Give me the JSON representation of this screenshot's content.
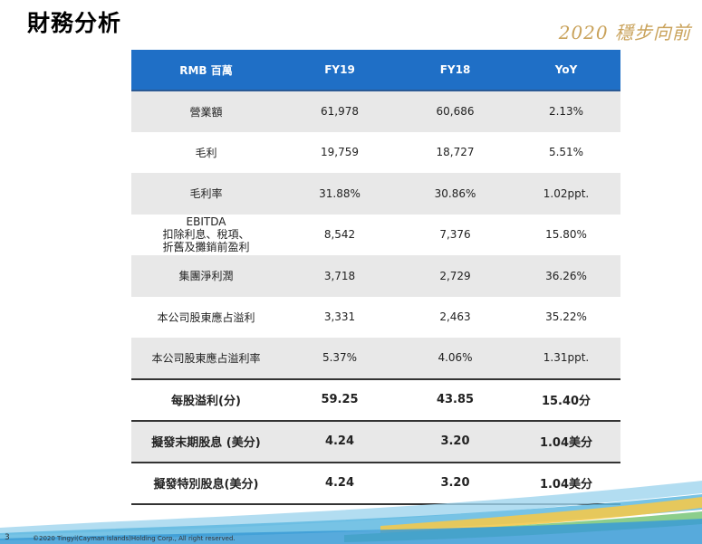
{
  "title": "財務分析",
  "slogan": "2020 穩步向前",
  "table": {
    "headers": [
      "RMB 百萬",
      "FY19",
      "FY18",
      "YoY"
    ],
    "rows": [
      {
        "label": "營業額",
        "fy19": "61,978",
        "fy18": "60,686",
        "yoy": "2.13%"
      },
      {
        "label": "毛利",
        "fy19": "19,759",
        "fy18": "18,727",
        "yoy": "5.51%"
      },
      {
        "label": "毛利率",
        "fy19": "31.88%",
        "fy18": "30.86%",
        "yoy": "1.02ppt."
      },
      {
        "label_lines": [
          "EBITDA",
          "扣除利息、稅項、",
          "折舊及攤銷前盈利"
        ],
        "fy19": "8,542",
        "fy18": "7,376",
        "yoy": "15.80%"
      },
      {
        "label": "集團淨利潤",
        "fy19": "3,718",
        "fy18": "2,729",
        "yoy": "36.26%"
      },
      {
        "label": "本公司股東應占溢利",
        "fy19": "3,331",
        "fy18": "2,463",
        "yoy": "35.22%"
      },
      {
        "label": "本公司股東應占溢利率",
        "fy19": "5.37%",
        "fy18": "4.06%",
        "yoy": "1.31ppt."
      },
      {
        "label": "每股溢利(分)",
        "fy19": "59.25",
        "fy18": "43.85",
        "yoy": "15.40分"
      },
      {
        "label": "擬發末期股息 (美分)",
        "fy19": "4.24",
        "fy18": "3.20",
        "yoy": "1.04美分"
      },
      {
        "label": "擬發特別股息(美分)",
        "fy19": "4.24",
        "fy18": "3.20",
        "yoy": "1.04美分"
      }
    ]
  },
  "footer": {
    "page_number": "3",
    "copyright": "©2020 Tingyi(Cayman islands)Holding Corp., All right reserved."
  },
  "colors": {
    "header_bg": "#1f6fc6",
    "alt_row_bg": "#e8e8e8",
    "slogan": "#c9a25a"
  }
}
